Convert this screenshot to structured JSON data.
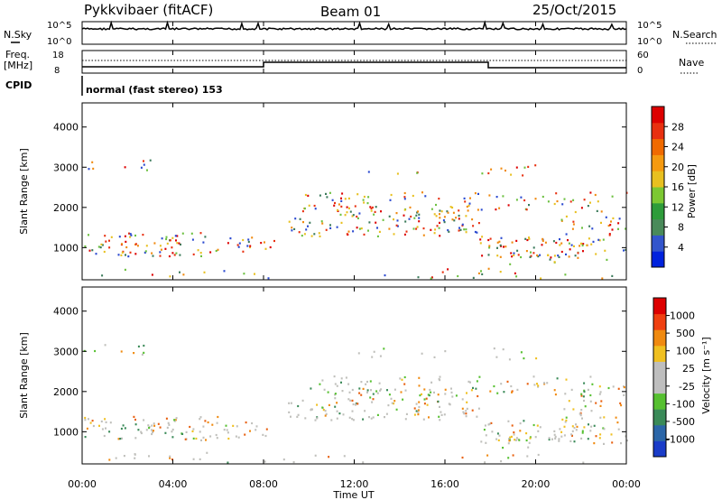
{
  "header": {
    "station": "Pykkvibaer (fitACF)",
    "beam": "Beam 01",
    "date": "25/Oct/2015"
  },
  "strip": {
    "nsky_label": "N.Sky",
    "nsky_ticks": [
      "10^5",
      "10^0"
    ],
    "nsearch_label": "N.Search",
    "nsearch_ticks": [
      "10^5",
      "10^0"
    ],
    "freq_label_1": "Freq.",
    "freq_label_2": "[MHz]",
    "freq_ticks": [
      "18",
      "8"
    ],
    "nave_label": "Nave",
    "nave_ticks": [
      "60",
      "0"
    ],
    "cpid_label": "CPID",
    "cpid_text": "normal (fast stereo) 153"
  },
  "chart_data": [
    {
      "type": "heatmap",
      "name": "power",
      "ylabel": "Slant Range [km]",
      "yticks": [
        "1000",
        "2000",
        "3000",
        "4000"
      ],
      "ylim": [
        200,
        4600
      ],
      "x_range_hours": [
        0,
        24
      ],
      "colorbar": {
        "label": "Power [dB]",
        "ticks": [
          "4",
          "8",
          "12",
          "16",
          "20",
          "24",
          "28"
        ],
        "colors": [
          "#0022dd",
          "#3355cc",
          "#4a8a5a",
          "#2e9c3a",
          "#7cc832",
          "#e8c020",
          "#f59a10",
          "#f06a00",
          "#e83010",
          "#dd0000"
        ]
      }
    },
    {
      "type": "heatmap",
      "name": "velocity",
      "ylabel": "Slant Range [km]",
      "yticks": [
        "1000",
        "2000",
        "3000",
        "4000"
      ],
      "ylim": [
        200,
        4600
      ],
      "x_range_hours": [
        0,
        24
      ],
      "colorbar": {
        "label": "Velocity [m s⁻¹]",
        "ticks": [
          "1000",
          "500",
          "100",
          "25",
          "-25",
          "-100",
          "-500",
          "-1000"
        ],
        "colors": [
          "#1a3cc8",
          "#2b66a8",
          "#3a8a58",
          "#56c030",
          "#bebebe",
          "#bebebe",
          "#f0c020",
          "#f08a10",
          "#f04010",
          "#dd0000"
        ]
      }
    }
  ],
  "xaxis": {
    "ticks": [
      "00:00",
      "04:00",
      "08:00",
      "12:00",
      "16:00",
      "20:00",
      "00:00"
    ],
    "label": "Time UT"
  }
}
